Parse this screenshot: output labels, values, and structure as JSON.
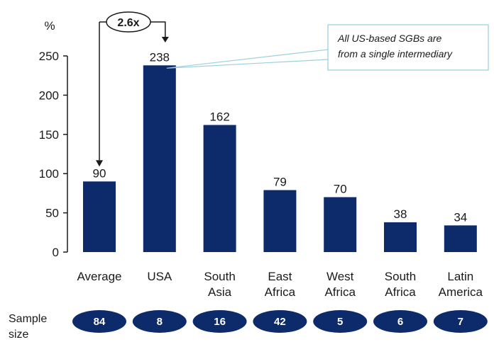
{
  "chart_data": {
    "type": "bar",
    "unit_label": "%",
    "categories": [
      [
        "Average"
      ],
      [
        "USA"
      ],
      [
        "South",
        "Asia"
      ],
      [
        "East",
        "Africa"
      ],
      [
        "West",
        "Africa"
      ],
      [
        "South",
        "Africa"
      ],
      [
        "Latin",
        "America"
      ]
    ],
    "values": [
      90,
      238,
      162,
      79,
      70,
      38,
      34
    ],
    "ylim": [
      0,
      250
    ],
    "yticks": [
      0,
      50,
      100,
      150,
      200,
      250
    ],
    "grid": false,
    "bar_color": "#0d2a6b",
    "sample_size": {
      "label": [
        "Sample",
        "size"
      ],
      "values": [
        "84",
        "8",
        "16",
        "42",
        "5",
        "6",
        "7"
      ]
    },
    "annotations": {
      "multiplier": "2.6x",
      "callout": [
        "All US-based SGBs are",
        "from a single intermediary"
      ]
    }
  },
  "colors": {
    "bar": "#0d2a6b",
    "pill": "#0d2a6b",
    "callout_border": "#9fd0de",
    "axis": "#1a1a1a"
  }
}
